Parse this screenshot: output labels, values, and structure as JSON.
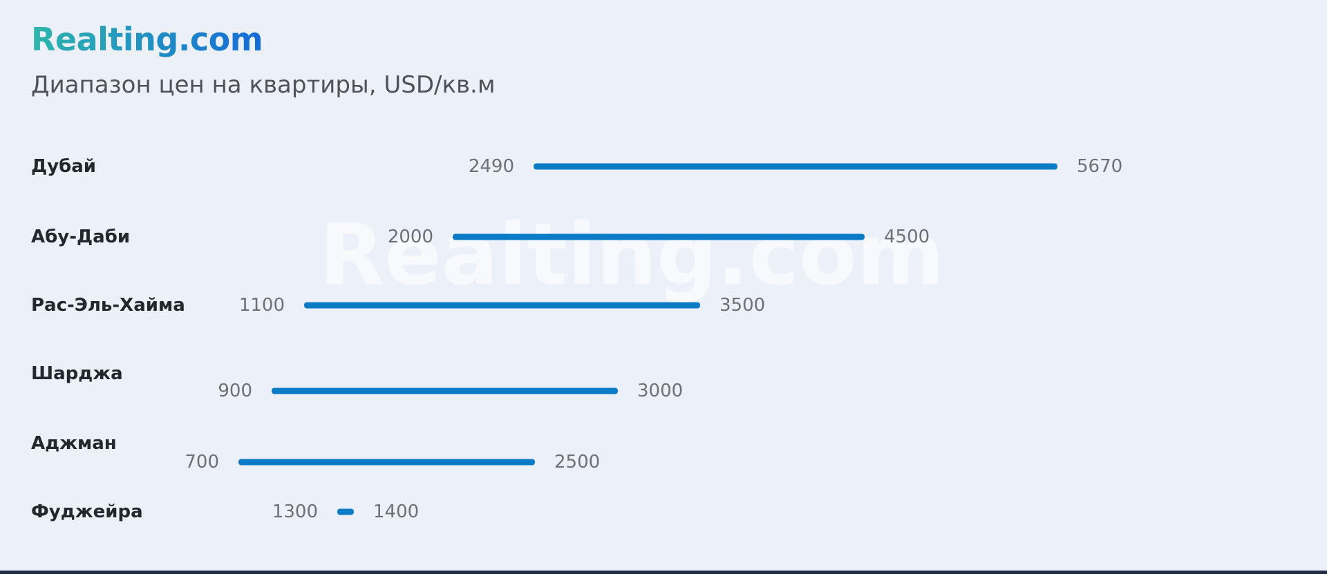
{
  "page": {
    "background": "#ECF1F9"
  },
  "brand": {
    "logo_text": "Realting.com"
  },
  "header": {
    "title": "Диапазон цен на квартиры, USD/кв.м"
  },
  "watermark": {
    "text": "Realting.com"
  },
  "colors": {
    "background": "#ECF1F9",
    "bar": "#0C7BC5",
    "logo_gradient_start": "#2EB6AC",
    "logo_gradient_end": "#166BD8",
    "city_label": "#23272E",
    "value_label": "#6D7076",
    "title_text": "#4F5359",
    "footer_bar": "#232D45"
  },
  "chart_data": {
    "type": "bar",
    "variant": "range-dumbbell",
    "title": "Диапазон цен на квартиры, USD/кв.м",
    "unit": "USD/кв.м",
    "categories": [
      "Дубай",
      "Абу-Даби",
      "Рас-Эль-Хайма",
      "Шарджа",
      "Аджман",
      "Фуджейра"
    ],
    "series": [
      {
        "name": "min",
        "values": [
          2490,
          2000,
          1100,
          900,
          700,
          1300
        ]
      },
      {
        "name": "max",
        "values": [
          5670,
          4500,
          3500,
          3000,
          2500,
          1400
        ]
      }
    ],
    "xlim": [
      0,
      6000
    ],
    "grid": false,
    "legend": false,
    "value_labels": "both-ends"
  }
}
